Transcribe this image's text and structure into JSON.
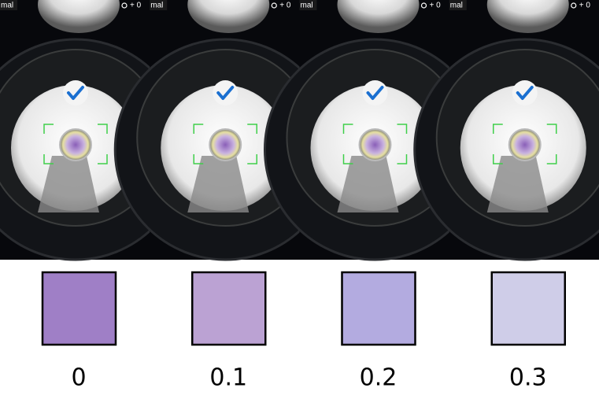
{
  "panels": [
    {
      "mode": "mal",
      "exposure": "+ 0",
      "swatch_color": "#9f7fc6",
      "label": "0"
    },
    {
      "mode": "mal",
      "exposure": "+ 0",
      "swatch_color": "#bba2d3",
      "label": "0.1"
    },
    {
      "mode": "mal",
      "exposure": "+ 0",
      "swatch_color": "#b3abe0",
      "label": "0.2"
    },
    {
      "mode": "mal",
      "exposure": "+ 0",
      "swatch_color": "#cfcde8",
      "label": "0.3"
    }
  ]
}
